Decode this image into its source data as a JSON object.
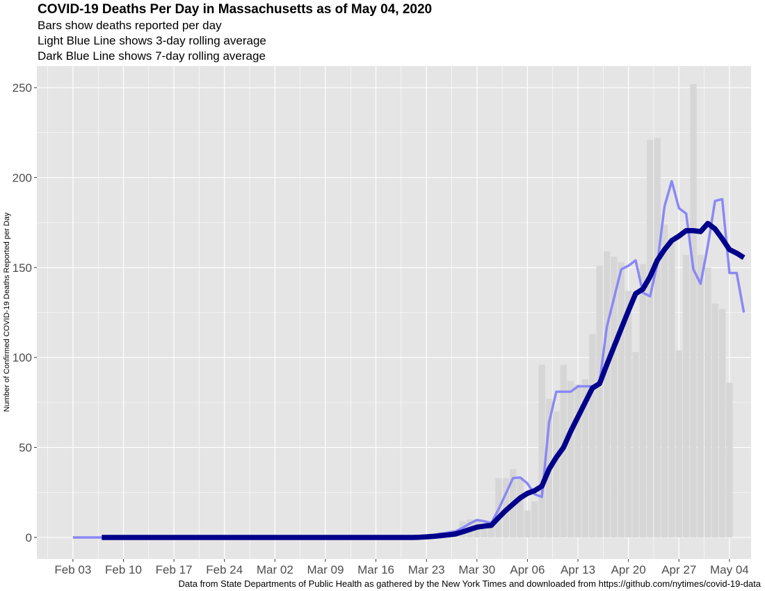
{
  "chart_data": {
    "type": "bar",
    "title": "COVID-19 Deaths Per Day in Massachusetts as of May 04, 2020",
    "subtitles": [
      "Bars show deaths reported per day",
      "Light Blue Line shows 3-day rolling average",
      "Dark Blue Line shows 7-day rolling average"
    ],
    "ylabel": "Number of Confirmed COVID-19 Deaths Reported per Day",
    "xlabel": "",
    "caption": "Data from State Departments of Public Health as gathered by the New York Times and downloaded from https://github.com/nytimes/covid-19-data",
    "x_range": [
      "2020-01-29",
      "2020-05-07"
    ],
    "ylim": [
      -12,
      262
    ],
    "x_ticks": [
      {
        "date": "2020-02-03",
        "label": "Feb 03"
      },
      {
        "date": "2020-02-10",
        "label": "Feb 10"
      },
      {
        "date": "2020-02-17",
        "label": "Feb 17"
      },
      {
        "date": "2020-02-24",
        "label": "Feb 24"
      },
      {
        "date": "2020-03-02",
        "label": "Mar 02"
      },
      {
        "date": "2020-03-09",
        "label": "Mar 09"
      },
      {
        "date": "2020-03-16",
        "label": "Mar 16"
      },
      {
        "date": "2020-03-23",
        "label": "Mar 23"
      },
      {
        "date": "2020-03-30",
        "label": "Mar 30"
      },
      {
        "date": "2020-04-06",
        "label": "Apr 06"
      },
      {
        "date": "2020-04-13",
        "label": "Apr 13"
      },
      {
        "date": "2020-04-20",
        "label": "Apr 20"
      },
      {
        "date": "2020-04-27",
        "label": "Apr 27"
      },
      {
        "date": "2020-05-04",
        "label": "May 04"
      }
    ],
    "y_ticks": [
      0,
      50,
      100,
      150,
      200,
      250
    ],
    "grid": true,
    "colors": {
      "panel": "#e5e5e5",
      "grid": "#ffffff",
      "bars": "#d6d6d6",
      "rolling3": "#8a88f5",
      "rolling7": "#00008b"
    },
    "daily": {
      "start_date": "2020-02-01",
      "values": [
        0,
        0,
        0,
        0,
        0,
        0,
        0,
        0,
        0,
        0,
        0,
        0,
        0,
        0,
        0,
        0,
        0,
        0,
        0,
        0,
        0,
        0,
        0,
        0,
        0,
        0,
        0,
        0,
        0,
        0,
        0,
        0,
        0,
        0,
        0,
        0,
        0,
        0,
        0,
        0,
        0,
        0,
        0,
        0,
        0,
        0,
        0,
        0,
        0,
        0,
        1,
        1,
        2,
        3,
        3,
        4,
        9,
        10,
        10,
        7,
        7,
        33,
        33,
        38,
        33,
        15,
        20,
        96,
        77,
        70,
        96,
        87,
        85,
        88,
        113,
        151,
        159,
        156,
        153,
        137,
        103,
        152,
        221,
        222,
        174,
        165,
        104,
        157,
        252,
        157,
        150,
        130,
        127,
        86
      ]
    },
    "series": [
      {
        "name": "3-day rolling average",
        "start_date": "2020-02-03",
        "values": [
          0,
          0,
          0,
          0,
          0,
          0,
          0,
          0,
          0,
          0,
          0,
          0,
          0,
          0,
          0,
          0,
          0,
          0,
          0,
          0,
          0,
          0,
          0,
          0,
          0,
          0,
          0,
          0,
          0,
          0,
          0,
          0,
          0,
          0,
          0,
          0,
          0,
          0,
          0,
          0,
          0,
          0,
          0,
          0,
          0,
          0,
          0,
          0,
          0.3,
          0.7,
          1.3,
          2,
          2.7,
          3.3,
          5.3,
          7.7,
          9.7,
          9,
          8,
          15.7,
          24.3,
          33,
          33.3,
          30,
          24,
          22.5,
          64,
          81,
          81,
          81,
          84,
          84,
          84,
          86,
          117,
          133,
          149,
          151,
          154,
          136,
          134,
          152,
          184,
          198,
          183,
          180,
          149,
          141,
          162,
          187,
          188,
          147,
          147,
          125
        ]
      },
      {
        "name": "7-day rolling average",
        "start_date": "2020-02-07",
        "values": [
          0,
          0,
          0,
          0,
          0,
          0,
          0,
          0,
          0,
          0,
          0,
          0,
          0,
          0,
          0,
          0,
          0,
          0,
          0,
          0,
          0,
          0,
          0,
          0,
          0,
          0,
          0,
          0,
          0,
          0,
          0,
          0,
          0,
          0,
          0,
          0,
          0,
          0,
          0,
          0,
          0,
          0,
          0,
          0,
          0.1,
          0.3,
          0.6,
          1,
          1.4,
          1.9,
          3.1,
          4.4,
          5.7,
          6.3,
          6.7,
          11,
          15,
          18.5,
          22,
          24.5,
          26,
          28.5,
          38,
          44.5,
          50,
          59,
          67,
          75,
          83,
          85.5,
          96,
          106,
          116,
          126,
          135.5,
          138,
          145,
          154,
          160,
          165,
          167.5,
          170.5,
          170.5,
          170,
          174.5,
          171.5,
          166,
          160,
          158,
          155.5
        ]
      }
    ]
  }
}
